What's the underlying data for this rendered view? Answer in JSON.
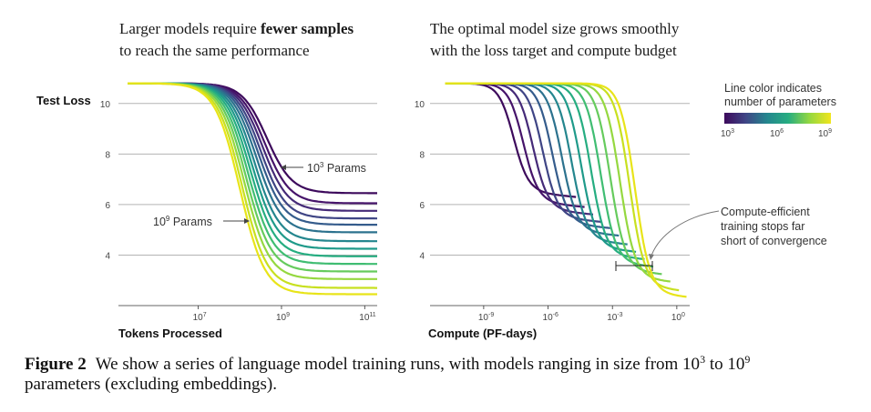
{
  "chart_data": [
    {
      "type": "line",
      "title_line1_pre": "Larger models require ",
      "title_line1_bold": "fewer samples",
      "title_line2": "to reach the same performance",
      "ylabel": "Test Loss",
      "xlabel": "Tokens Processed",
      "xscale": "log",
      "xlim_log10": [
        5.3,
        11.3
      ],
      "ylim": [
        2.0,
        11.0
      ],
      "yticks": [
        "10",
        "8",
        "6",
        "4"
      ],
      "xticks": [
        {
          "base": "10",
          "exp": "7",
          "log10": 7
        },
        {
          "base": "10",
          "exp": "9",
          "log10": 9
        },
        {
          "base": "10",
          "exp": "11",
          "log10": 11
        }
      ],
      "annotations": [
        {
          "base": "10",
          "exp": "3",
          "suffix": " Params"
        },
        {
          "base": "10",
          "exp": "9",
          "suffix": " Params"
        }
      ],
      "series": [
        {
          "name": "1e3 params",
          "color": "#3d0a5c",
          "start_log10": 5.3,
          "end_log10": 11.3,
          "initial_loss": 10.8,
          "final_loss": 6.45,
          "drop_center_log10": 8.65,
          "drop_width": 0.3
        },
        {
          "name": "1e3.5 params",
          "color": "#46146a",
          "start_log10": 5.3,
          "end_log10": 11.3,
          "initial_loss": 10.8,
          "final_loss": 6.05,
          "drop_center_log10": 8.6,
          "drop_width": 0.3
        },
        {
          "name": "1e4 params",
          "color": "#452a78",
          "start_log10": 5.3,
          "end_log10": 11.3,
          "initial_loss": 10.8,
          "final_loss": 5.75,
          "drop_center_log10": 8.55,
          "drop_width": 0.3
        },
        {
          "name": "1e4.5 params",
          "color": "#3f4585",
          "start_log10": 5.3,
          "end_log10": 11.3,
          "initial_loss": 10.8,
          "final_loss": 5.45,
          "drop_center_log10": 8.5,
          "drop_width": 0.3
        },
        {
          "name": "1e5 params",
          "color": "#355c8c",
          "start_log10": 5.3,
          "end_log10": 11.3,
          "initial_loss": 10.8,
          "final_loss": 5.2,
          "drop_center_log10": 8.45,
          "drop_width": 0.3
        },
        {
          "name": "1e5.5 params",
          "color": "#2c728e",
          "start_log10": 5.3,
          "end_log10": 11.3,
          "initial_loss": 10.8,
          "final_loss": 4.9,
          "drop_center_log10": 8.4,
          "drop_width": 0.3
        },
        {
          "name": "1e6 params",
          "color": "#24868e",
          "start_log10": 5.3,
          "end_log10": 11.3,
          "initial_loss": 10.8,
          "final_loss": 4.55,
          "drop_center_log10": 8.35,
          "drop_width": 0.3
        },
        {
          "name": "1e6.5 params",
          "color": "#1f9a8a",
          "start_log10": 5.3,
          "end_log10": 11.3,
          "initial_loss": 10.8,
          "final_loss": 4.25,
          "drop_center_log10": 8.3,
          "drop_width": 0.3
        },
        {
          "name": "1e7 params",
          "color": "#26ad81",
          "start_log10": 5.3,
          "end_log10": 11.3,
          "initial_loss": 10.8,
          "final_loss": 3.95,
          "drop_center_log10": 8.25,
          "drop_width": 0.3
        },
        {
          "name": "1e7.5 params",
          "color": "#40bd72",
          "start_log10": 5.3,
          "end_log10": 11.3,
          "initial_loss": 10.8,
          "final_loss": 3.65,
          "drop_center_log10": 8.2,
          "drop_width": 0.3
        },
        {
          "name": "1e8 params",
          "color": "#66cb5d",
          "start_log10": 5.3,
          "end_log10": 11.3,
          "initial_loss": 10.8,
          "final_loss": 3.35,
          "drop_center_log10": 8.15,
          "drop_width": 0.3
        },
        {
          "name": "1e8.5 params",
          "color": "#95d840",
          "start_log10": 5.3,
          "end_log10": 11.3,
          "initial_loss": 10.8,
          "final_loss": 3.05,
          "drop_center_log10": 8.1,
          "drop_width": 0.3
        },
        {
          "name": "1e9 params",
          "color": "#c8e020",
          "start_log10": 5.3,
          "end_log10": 11.3,
          "initial_loss": 10.8,
          "final_loss": 2.7,
          "drop_center_log10": 8.05,
          "drop_width": 0.3
        },
        {
          "name": "1e9.2 params",
          "color": "#e8e419",
          "start_log10": 5.3,
          "end_log10": 11.3,
          "initial_loss": 10.8,
          "final_loss": 2.45,
          "drop_center_log10": 8.0,
          "drop_width": 0.3
        }
      ]
    },
    {
      "type": "line",
      "title_line1": "The optimal model size grows smoothly",
      "title_line2": "with the loss target and compute budget",
      "xlabel": "Compute (PF-days)",
      "xscale": "log",
      "xlim_log10": [
        -11.5,
        0.6
      ],
      "ylim": [
        2.0,
        11.0
      ],
      "yticks": [
        "10",
        "8",
        "6",
        "4"
      ],
      "xticks": [
        {
          "base": "10",
          "exp": "-9",
          "log10": -9
        },
        {
          "base": "10",
          "exp": "-6",
          "log10": -6
        },
        {
          "base": "10",
          "exp": "-3",
          "log10": -3
        },
        {
          "base": "10",
          "exp": "0",
          "log10": 0
        }
      ],
      "annotation": [
        "Compute-efficient",
        "training stops far",
        "short of convergence"
      ],
      "series": [
        {
          "name": "1e3 params",
          "color": "#3d0a5c",
          "start_log10": -10.8,
          "end_log10": -4.7,
          "initial_loss": 10.8,
          "final_loss": 6.45,
          "drop_center_log10": -7.6,
          "drop_width": 0.35
        },
        {
          "name": "1e3.5 params",
          "color": "#46146a",
          "start_log10": -10.8,
          "end_log10": -4.3,
          "initial_loss": 10.8,
          "final_loss": 6.05,
          "drop_center_log10": -7.15,
          "drop_width": 0.35
        },
        {
          "name": "1e4 params",
          "color": "#452a78",
          "start_log10": -10.8,
          "end_log10": -3.9,
          "initial_loss": 10.8,
          "final_loss": 5.75,
          "drop_center_log10": -6.7,
          "drop_width": 0.35
        },
        {
          "name": "1e4.5 params",
          "color": "#3f4585",
          "start_log10": -10.8,
          "end_log10": -3.5,
          "initial_loss": 10.8,
          "final_loss": 5.45,
          "drop_center_log10": -6.25,
          "drop_width": 0.35
        },
        {
          "name": "1e5 params",
          "color": "#355c8c",
          "start_log10": -10.8,
          "end_log10": -3.1,
          "initial_loss": 10.8,
          "final_loss": 5.2,
          "drop_center_log10": -5.8,
          "drop_width": 0.35
        },
        {
          "name": "1e5.5 params",
          "color": "#2c728e",
          "start_log10": -10.8,
          "end_log10": -2.7,
          "initial_loss": 10.8,
          "final_loss": 4.9,
          "drop_center_log10": -5.35,
          "drop_width": 0.35
        },
        {
          "name": "1e6 params",
          "color": "#24868e",
          "start_log10": -10.8,
          "end_log10": -2.3,
          "initial_loss": 10.8,
          "final_loss": 4.55,
          "drop_center_log10": -4.9,
          "drop_width": 0.35
        },
        {
          "name": "1e6.5 params",
          "color": "#1f9a8a",
          "start_log10": -10.8,
          "end_log10": -1.9,
          "initial_loss": 10.8,
          "final_loss": 4.25,
          "drop_center_log10": -4.45,
          "drop_width": 0.35
        },
        {
          "name": "1e7 params",
          "color": "#26ad81",
          "start_log10": -10.8,
          "end_log10": -1.5,
          "initial_loss": 10.8,
          "final_loss": 3.95,
          "drop_center_log10": -4.0,
          "drop_width": 0.35
        },
        {
          "name": "1e7.5 params",
          "color": "#40bd72",
          "start_log10": -10.8,
          "end_log10": -1.1,
          "initial_loss": 10.8,
          "final_loss": 3.65,
          "drop_center_log10": -3.55,
          "drop_width": 0.35
        },
        {
          "name": "1e8 params",
          "color": "#66cb5d",
          "start_log10": -10.8,
          "end_log10": -0.7,
          "initial_loss": 10.8,
          "final_loss": 3.35,
          "drop_center_log10": -3.1,
          "drop_width": 0.35
        },
        {
          "name": "1e8.5 params",
          "color": "#95d840",
          "start_log10": -10.8,
          "end_log10": -0.3,
          "initial_loss": 10.8,
          "final_loss": 3.05,
          "drop_center_log10": -2.65,
          "drop_width": 0.35
        },
        {
          "name": "1e9 params",
          "color": "#c8e020",
          "start_log10": -10.8,
          "end_log10": 0.1,
          "initial_loss": 10.8,
          "final_loss": 2.7,
          "drop_center_log10": -2.2,
          "drop_width": 0.35
        },
        {
          "name": "1e9.2 params",
          "color": "#e8e419",
          "start_log10": -10.8,
          "end_log10": 0.45,
          "initial_loss": 10.8,
          "final_loss": 2.45,
          "drop_center_log10": -1.95,
          "drop_width": 0.35
        }
      ]
    }
  ],
  "colorbar": {
    "title_line1": "Line color indicates",
    "title_line2": "number of parameters",
    "ticks": [
      {
        "base": "10",
        "exp": "3"
      },
      {
        "base": "10",
        "exp": "6"
      },
      {
        "base": "10",
        "exp": "9"
      }
    ],
    "stops": [
      "#3d0a5c",
      "#3f4585",
      "#24868e",
      "#26ad81",
      "#95d840",
      "#f1e51d"
    ]
  },
  "caption": {
    "label": "Figure 2",
    "text_pre": "We show a series of language model training runs, with models ranging in size from 10",
    "exp1": "3",
    "text_mid": " to 10",
    "exp2": "9",
    "text_post": "parameters (excluding embeddings)."
  }
}
